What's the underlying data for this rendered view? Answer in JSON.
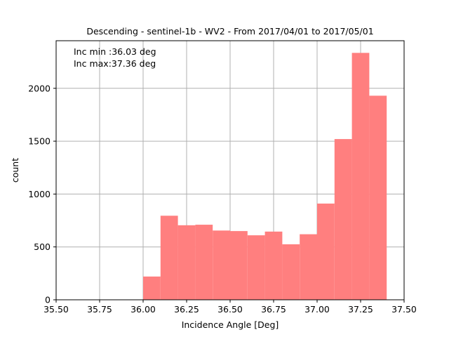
{
  "chart_data": {
    "type": "bar",
    "title": "Descending - sentinel-1b - WV2 - From 2017/04/01 to 2017/05/01",
    "xlabel": "Incidence Angle [Deg]",
    "ylabel": "count",
    "xlim": [
      35.5,
      37.5
    ],
    "ylim": [
      0,
      2450
    ],
    "grid": true,
    "bar_color": "#ff7f7f",
    "xticks": [
      "35.50",
      "35.75",
      "36.00",
      "36.25",
      "36.50",
      "36.75",
      "37.00",
      "37.25",
      "37.50"
    ],
    "yticks": [
      "0",
      "500",
      "1000",
      "1500",
      "2000"
    ],
    "bins": [
      {
        "x0": 36.0,
        "x1": 36.1,
        "value": 220
      },
      {
        "x0": 36.1,
        "x1": 36.2,
        "value": 795
      },
      {
        "x0": 36.2,
        "x1": 36.3,
        "value": 705
      },
      {
        "x0": 36.3,
        "x1": 36.4,
        "value": 710
      },
      {
        "x0": 36.4,
        "x1": 36.5,
        "value": 655
      },
      {
        "x0": 36.5,
        "x1": 36.6,
        "value": 650
      },
      {
        "x0": 36.6,
        "x1": 36.7,
        "value": 610
      },
      {
        "x0": 36.7,
        "x1": 36.8,
        "value": 645
      },
      {
        "x0": 36.8,
        "x1": 36.9,
        "value": 525
      },
      {
        "x0": 36.9,
        "x1": 37.0,
        "value": 620
      },
      {
        "x0": 37.0,
        "x1": 37.1,
        "value": 910
      },
      {
        "x0": 37.1,
        "x1": 37.2,
        "value": 1520
      },
      {
        "x0": 37.2,
        "x1": 37.3,
        "value": 2335
      },
      {
        "x0": 37.3,
        "x1": 37.4,
        "value": 1930
      }
    ],
    "annotations": [
      "Inc min :36.03 deg",
      "Inc max:37.36 deg"
    ]
  }
}
